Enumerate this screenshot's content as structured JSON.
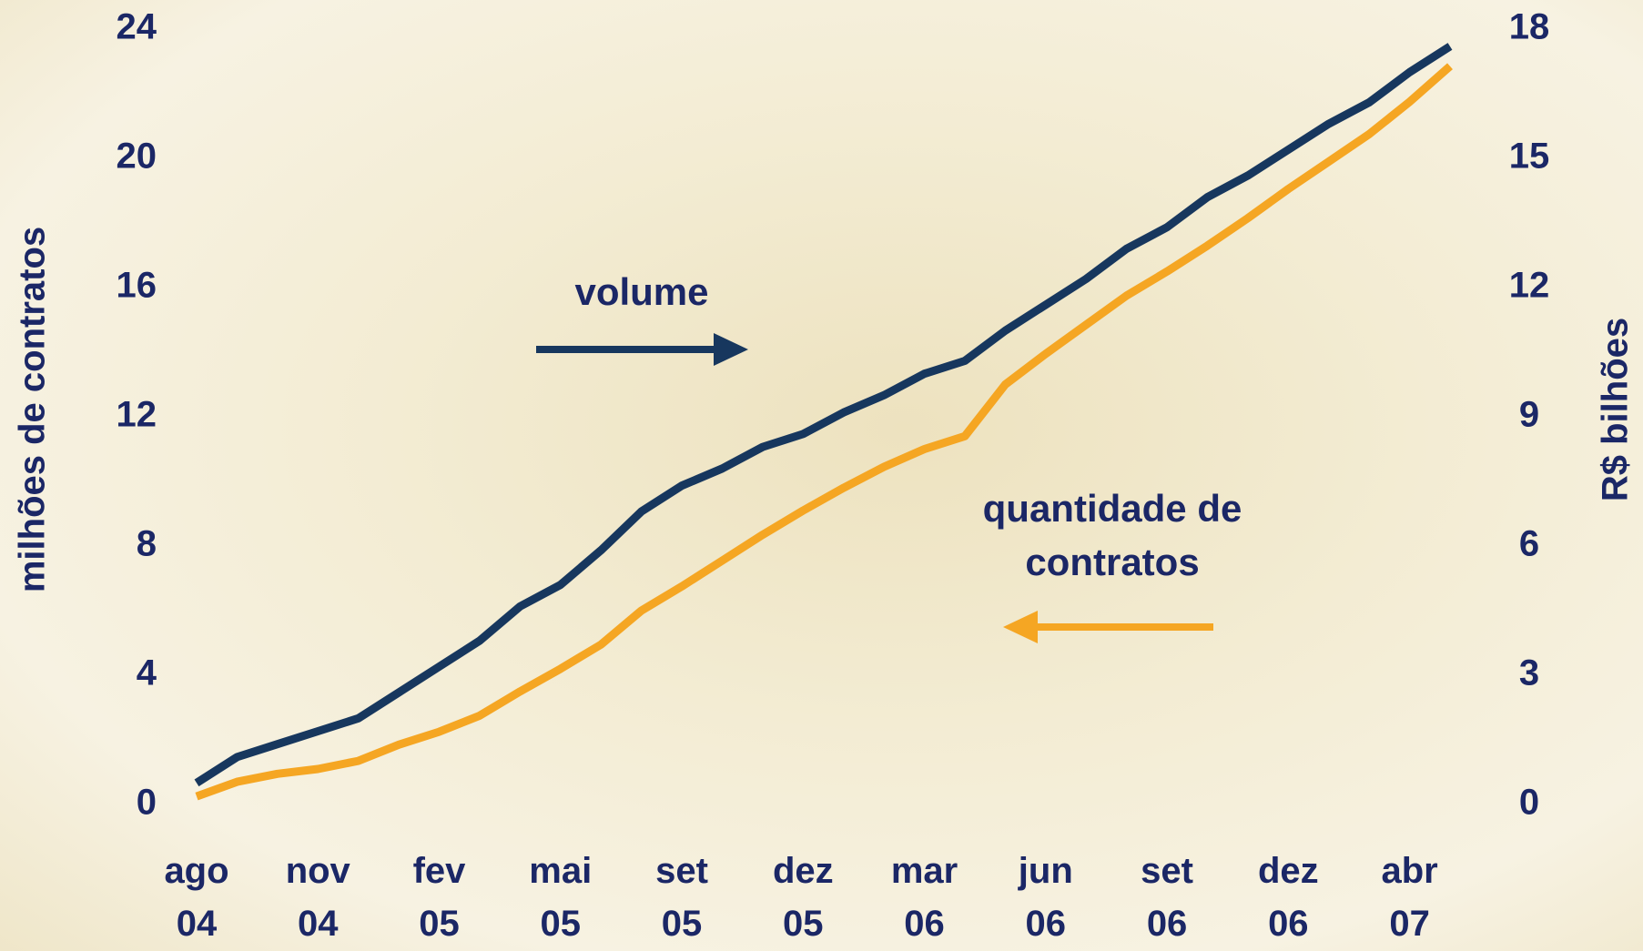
{
  "chart_data": {
    "type": "line",
    "categories": [
      "ago 04",
      null,
      null,
      "nov 04",
      null,
      null,
      "fev 05",
      null,
      null,
      "mai 05",
      null,
      null,
      "set 05",
      null,
      null,
      "dez 05",
      null,
      null,
      "mar 06",
      null,
      null,
      "jun 06",
      null,
      null,
      "set 06",
      null,
      null,
      "dez 06",
      null,
      null,
      "abr 07",
      null
    ],
    "y_label": "milhões de contratos",
    "y2_label": "R$ bilhões",
    "ylim": [
      0,
      24
    ],
    "yticks": [
      0,
      4,
      8,
      12,
      16,
      20,
      24
    ],
    "y2lim": [
      0,
      18
    ],
    "y2ticks": [
      0,
      3,
      6,
      9,
      12,
      15,
      18
    ],
    "series": [
      {
        "name": "quantidade de contratos",
        "color": "#f5a623",
        "axis": "y",
        "values": [
          0.25,
          0.7,
          0.95,
          1.1,
          1.35,
          1.85,
          2.25,
          2.75,
          3.5,
          4.2,
          4.95,
          6.0,
          6.75,
          7.55,
          8.35,
          9.1,
          9.8,
          10.45,
          11.0,
          11.4,
          13.0,
          13.95,
          14.85,
          15.75,
          16.5,
          17.3,
          18.15,
          19.05,
          19.9,
          20.75,
          21.75,
          22.85
        ]
      },
      {
        "name": "volume",
        "color": "#17375e",
        "axis": "y2",
        "values": [
          0.5,
          1.1,
          1.4,
          1.7,
          2.0,
          2.6,
          3.2,
          3.8,
          4.6,
          5.1,
          5.9,
          6.8,
          7.4,
          7.8,
          8.3,
          8.6,
          9.1,
          9.5,
          10.0,
          10.3,
          11.0,
          11.6,
          12.2,
          12.9,
          13.4,
          14.1,
          14.6,
          15.2,
          15.8,
          16.3,
          17.0,
          17.6
        ]
      }
    ]
  }
}
